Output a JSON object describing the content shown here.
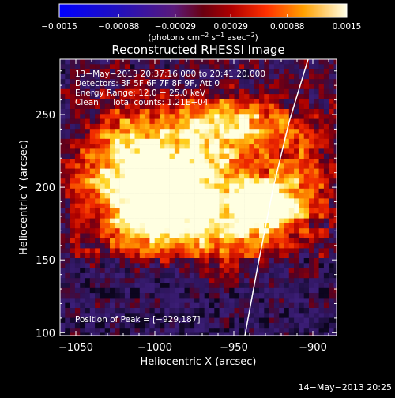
{
  "chart_data": {
    "type": "heatmap",
    "title": "Reconstructed RHESSI Image",
    "xlabel": "Heliocentric X (arcsec)",
    "ylabel": "Heliocentric Y (arcsec)",
    "xlim": [
      -1060,
      -885
    ],
    "ylim": [
      98,
      288
    ],
    "x_ticks": [
      -1050,
      -1000,
      -950,
      -900
    ],
    "x_tick_labels": [
      "−1050",
      "−1000",
      "−950",
      "−900"
    ],
    "y_ticks": [
      100,
      150,
      200,
      250
    ],
    "y_tick_labels": [
      "100",
      "150",
      "200",
      "250"
    ],
    "colorbar": {
      "range": [
        -0.0015,
        0.0015
      ],
      "ticks": [
        -0.0015,
        -0.00088,
        -0.00029,
        0.00029,
        0.00088,
        0.0015
      ],
      "tick_labels": [
        "−0.0015",
        "−0.00088",
        "−0.00029",
        "0.00029",
        "0.00088",
        "0.0015"
      ],
      "units_prefix": "(photons cm",
      "units_exp1": "−2",
      "units_mid": " s",
      "units_exp2": "−1",
      "units_mid2": " asec",
      "units_exp3": "−2",
      "units_suffix": ")"
    },
    "annotations": {
      "line1": "13−May−2013 20:37:16.000 to 20:41:20.000",
      "line2": "Detectors: 3F 5F 6F 7F 8F 9F, Att 0",
      "line3": "Energy Range: 12.0 − 25.0 keV",
      "line4": "Clean     Total counts: 1.21E+04",
      "peak": "Position of Peak = [−929,187]"
    },
    "peak": [
      -929,
      187
    ],
    "sources": [
      {
        "x": -929,
        "y": 187,
        "amp": 1.0,
        "sx": 12,
        "sy": 10
      },
      {
        "x": -1000,
        "y": 196,
        "amp": 0.9,
        "sx": 18,
        "sy": 16
      },
      {
        "x": -970,
        "y": 215,
        "amp": 0.65,
        "sx": 30,
        "sy": 25
      },
      {
        "x": -1020,
        "y": 225,
        "amp": 0.55,
        "sx": 16,
        "sy": 22
      },
      {
        "x": -950,
        "y": 245,
        "amp": 0.5,
        "sx": 30,
        "sy": 12
      },
      {
        "x": -955,
        "y": 170,
        "amp": 0.55,
        "sx": 30,
        "sy": 18
      },
      {
        "x": -1010,
        "y": 170,
        "amp": 0.4,
        "sx": 22,
        "sy": 14
      },
      {
        "x": -905,
        "y": 205,
        "amp": 0.35,
        "sx": 14,
        "sy": 22
      },
      {
        "x": -1045,
        "y": 200,
        "amp": 0.3,
        "sx": 10,
        "sy": 20
      }
    ],
    "limb_line": [
      [
        -943,
        98
      ],
      [
        -935,
        145
      ],
      [
        -925,
        200
      ],
      [
        -915,
        245
      ],
      [
        -903,
        288
      ]
    ],
    "date_stamp": "14−May−2013 20:25"
  }
}
